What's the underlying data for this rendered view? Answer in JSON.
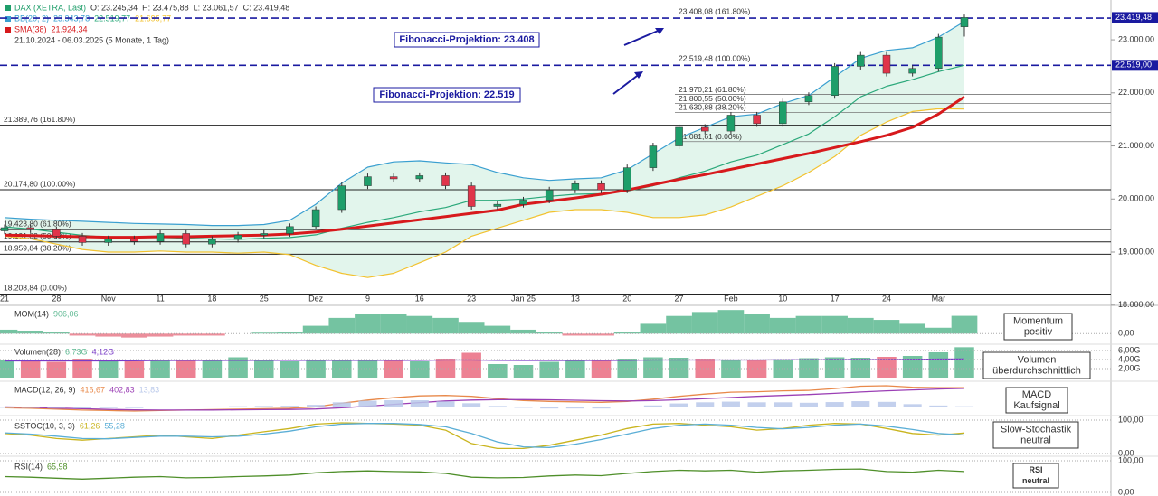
{
  "header": {
    "symbol": "DAX (XETRA, Last)",
    "open": "O: 23.245,34",
    "high": "H: 23.475,88",
    "low": "L: 23.061,57",
    "close": "C: 23.419,48",
    "bb": "BB(20, 2)",
    "bb_upper": "23.343,78",
    "bb_mid": "22.519,77",
    "bb_lower": "21.695,77",
    "sma": "SMA(38)",
    "sma_value": "21.924,34",
    "range": "21.10.2024 - 06.03.2025 (5 Monate, 1 Tag)"
  },
  "chart_data": [
    {
      "type": "candlestick",
      "categories": [
        "21",
        null,
        "28",
        null,
        "Nov",
        null,
        "11",
        null,
        "18",
        null,
        "25",
        null,
        "Dez",
        null,
        "9",
        null,
        "16",
        null,
        "23",
        null,
        "Jan 25",
        null,
        "13",
        null,
        "20",
        null,
        "27",
        null,
        "Feb",
        null,
        "10",
        null,
        "17",
        null,
        "24",
        null,
        "Mar",
        null
      ],
      "open": [
        19400,
        19460,
        19420,
        19300,
        19180,
        19250,
        19200,
        19350,
        19150,
        19240,
        19320,
        19350,
        19480,
        19800,
        20250,
        20420,
        20380,
        20440,
        20250,
        19860,
        19900,
        19980,
        20170,
        20290,
        20170,
        20590,
        21000,
        21350,
        21280,
        21580,
        21420,
        21830,
        21950,
        22500,
        22710,
        22370,
        22460,
        23245.34
      ],
      "high": [
        19520,
        19520,
        19480,
        19360,
        19310,
        19310,
        19410,
        19410,
        19300,
        19380,
        19410,
        19540,
        19860,
        20310,
        20480,
        20480,
        20500,
        20500,
        20310,
        19960,
        20040,
        20230,
        20350,
        20350,
        20650,
        21060,
        21410,
        21410,
        21640,
        21640,
        21890,
        22010,
        22560,
        22770,
        22770,
        22520,
        23110,
        23475.88
      ],
      "low": [
        19340,
        19360,
        19240,
        19120,
        19120,
        19140,
        19140,
        19090,
        19090,
        19180,
        19260,
        19290,
        19420,
        19740,
        20190,
        20320,
        20320,
        20190,
        19800,
        19800,
        19840,
        19920,
        20110,
        20110,
        20110,
        20530,
        20940,
        21220,
        21220,
        21360,
        21360,
        21770,
        21890,
        22440,
        22310,
        22310,
        22400,
        23061.57
      ],
      "close": [
        19460,
        19420,
        19300,
        19180,
        19250,
        19200,
        19350,
        19150,
        19240,
        19320,
        19350,
        19480,
        19800,
        20250,
        20420,
        20380,
        20440,
        20250,
        19860,
        19900,
        19980,
        20170,
        20290,
        20170,
        20590,
        21000,
        21350,
        21280,
        21580,
        21420,
        21830,
        21950,
        22500,
        22710,
        22370,
        22460,
        23050,
        23419.48
      ],
      "up_color": "#1e9e6a",
      "down_color": "#e0344a",
      "series": [
        {
          "color": "#3a9fd0",
          "values": [
            19650,
            19620,
            19600,
            19580,
            19560,
            19540,
            19530,
            19520,
            19500,
            19500,
            19520,
            19600,
            19900,
            20300,
            20600,
            20700,
            20720,
            20680,
            20650,
            20500,
            20400,
            20350,
            20380,
            20400,
            20550,
            20850,
            21150,
            21350,
            21550,
            21600,
            21800,
            21950,
            22300,
            22650,
            22800,
            22850,
            23050,
            23343.78
          ]
        },
        {
          "color": "#2aa87a",
          "values": [
            19475,
            19435,
            19375,
            19315,
            19280,
            19270,
            19275,
            19260,
            19250,
            19240,
            19260,
            19275,
            19325,
            19450,
            19560,
            19650,
            19760,
            19840,
            19975,
            19975,
            20000,
            20050,
            20090,
            20100,
            20150,
            20250,
            20400,
            20525,
            20700,
            20825,
            21025,
            21225,
            21550,
            21925,
            22125,
            22250,
            22400,
            22519.77
          ]
        },
        {
          "color": "#f2c230",
          "values": [
            19300,
            19250,
            19150,
            19050,
            19000,
            19000,
            19020,
            19000,
            19000,
            18980,
            19000,
            18950,
            18750,
            18600,
            18520,
            18600,
            18800,
            19000,
            19300,
            19450,
            19600,
            19750,
            19800,
            19800,
            19750,
            19650,
            19650,
            19700,
            19850,
            20050,
            20250,
            20500,
            20800,
            21200,
            21450,
            21650,
            21700,
            21695.77
          ]
        },
        {
          "color": "#d7191c",
          "values": [
            19320,
            19310,
            19300,
            19290,
            19280,
            19280,
            19290,
            19290,
            19300,
            19310,
            19320,
            19340,
            19380,
            19430,
            19490,
            19550,
            19610,
            19670,
            19730,
            19790,
            19900,
            19960,
            20020,
            20090,
            20170,
            20270,
            20370,
            20460,
            20560,
            20660,
            20760,
            20860,
            20970,
            21080,
            21200,
            21350,
            21600,
            21924.34
          ]
        }
      ],
      "band_color": "#cfeee0",
      "ylim": [
        18200,
        23580
      ],
      "yticks": [
        {
          "value": 23000,
          "label": "23.000,00"
        },
        {
          "value": 22000,
          "label": "22.000,00"
        },
        {
          "value": 21000,
          "label": "21.000,00"
        },
        {
          "value": 20000,
          "label": "20.000,00"
        },
        {
          "value": 19000,
          "label": "19.000,00"
        },
        {
          "value": 18000,
          "label": "18.000,00"
        }
      ],
      "fib_left": [
        {
          "value": 21389.76,
          "label": "21.389,76 (161.80%)"
        },
        {
          "value": 20174.8,
          "label": "20.174,80 (100.00%)"
        },
        {
          "value": 19423.8,
          "label": "19.423,80 (61.80%)"
        },
        {
          "value": 19191.82,
          "label": "19.191,82 (50.00%)"
        },
        {
          "value": 18959.84,
          "label": "18.959,84 (38.20%)"
        },
        {
          "value": 18208.84,
          "label": "18.208,84 (0.00%)"
        }
      ],
      "fib_right": [
        {
          "value": 21970.21,
          "label": "21.970,21 (61.80%)"
        },
        {
          "value": 21800.55,
          "label": "21.800,55 (50.00%)"
        },
        {
          "value": 21630.88,
          "label": "21.630,88 (38.20%)"
        },
        {
          "value": 21081.61,
          "label": "21.081,61 (0.00%)"
        }
      ],
      "fib_projection": [
        {
          "value": 23408.08,
          "label": "23.408,08 (161.80%)"
        },
        {
          "value": 22519.48,
          "label": "22.519,48 (100.00%)"
        }
      ],
      "annotations": [
        "Fibonacci-Projektion: 23.408",
        "Fibonacci-Projektion: 22.519"
      ],
      "price_tags": [
        {
          "value": 23419.48,
          "label": "23.419,48"
        },
        {
          "value": 22519,
          "label": "22.519,00"
        }
      ]
    },
    {
      "type": "area",
      "title": "MOM(14)",
      "readouts": [
        "906,06"
      ],
      "ylim": [
        -400,
        1300
      ],
      "yticks": [
        {
          "value": 0,
          "label": "0,00"
        }
      ],
      "series": [
        {
          "color": "#5cb891",
          "negative_color": "#e77a8a",
          "values": [
            200,
            150,
            100,
            -100,
            -150,
            -200,
            -150,
            -100,
            -100,
            0,
            50,
            100,
            400,
            800,
            1000,
            1000,
            900,
            800,
            600,
            400,
            200,
            100,
            -100,
            -100,
            100,
            500,
            900,
            1100,
            1200,
            1000,
            800,
            900,
            900,
            800,
            700,
            500,
            300,
            906.06
          ]
        }
      ],
      "note": [
        "Momentum",
        "positiv"
      ]
    },
    {
      "type": "bar",
      "title": "Volumen(28)",
      "readouts": [
        "6,73G",
        "4,12G"
      ],
      "ylim": [
        0,
        7
      ],
      "yticks": [
        {
          "value": 6,
          "label": "6,00G"
        },
        {
          "value": 4,
          "label": "4,00G"
        },
        {
          "value": 2,
          "label": "2,00G"
        }
      ],
      "series": [
        {
          "color": "#5cb891",
          "negative_color": "#ea6b80",
          "values": [
            3.8,
            4.0,
            3.5,
            4.2,
            3.9,
            3.6,
            4.0,
            3.8,
            3.7,
            4.5,
            3.9,
            3.6,
            4.0,
            3.9,
            3.8,
            3.7,
            3.6,
            4.2,
            5.5,
            3.0,
            2.8,
            3.5,
            3.8,
            3.9,
            4.2,
            4.5,
            4.4,
            4.2,
            3.9,
            4.0,
            4.1,
            4.3,
            4.5,
            4.4,
            4.6,
            4.8,
            5.6,
            6.73
          ]
        },
        {
          "color": "#7a3cc8",
          "values": [
            3.7,
            3.7,
            3.7,
            3.7,
            3.7,
            3.75,
            3.8,
            3.8,
            3.8,
            3.85,
            3.85,
            3.85,
            3.85,
            3.85,
            3.85,
            3.85,
            3.85,
            3.9,
            3.9,
            3.85,
            3.8,
            3.8,
            3.8,
            3.8,
            3.85,
            3.9,
            3.9,
            3.9,
            3.9,
            3.9,
            3.95,
            3.95,
            4.0,
            4.0,
            4.0,
            4.05,
            4.1,
            4.12
          ]
        }
      ],
      "note": [
        "Volumen",
        "überdurchschnittlich"
      ]
    },
    {
      "type": "line",
      "title": "MACD(12, 26, 9)",
      "readouts": [
        "416,67",
        "402,83",
        "13,83"
      ],
      "ylim": [
        -150,
        500
      ],
      "series": [
        {
          "color": "#e8894a",
          "values": [
            -20,
            -30,
            -50,
            -70,
            -80,
            -90,
            -80,
            -70,
            -60,
            -50,
            -40,
            -30,
            0,
            80,
            150,
            200,
            240,
            250,
            230,
            180,
            140,
            120,
            110,
            100,
            120,
            170,
            230,
            280,
            320,
            330,
            350,
            360,
            400,
            450,
            460,
            430,
            420,
            416.67
          ]
        },
        {
          "color": "#9b3fb5",
          "values": [
            0,
            -10,
            -25,
            -40,
            -55,
            -65,
            -70,
            -70,
            -68,
            -64,
            -60,
            -55,
            -45,
            -20,
            15,
            55,
            95,
            130,
            150,
            160,
            160,
            155,
            145,
            135,
            130,
            138,
            155,
            180,
            205,
            230,
            250,
            270,
            295,
            325,
            350,
            370,
            390,
            402.83
          ]
        },
        {
          "color": "#b9c8ea",
          "style": "histogram",
          "values": [
            -20,
            -20,
            -25,
            -30,
            -25,
            -25,
            -10,
            0,
            8,
            14,
            20,
            25,
            45,
            100,
            135,
            145,
            145,
            120,
            80,
            20,
            -20,
            -35,
            -35,
            -35,
            -10,
            32,
            75,
            100,
            115,
            100,
            100,
            90,
            105,
            125,
            110,
            60,
            30,
            13.83
          ]
        }
      ],
      "note": [
        "MACD",
        "Kaufsignal"
      ]
    },
    {
      "type": "line",
      "title": "SSTOC(10, 3, 3)",
      "readouts": [
        "61,26",
        "55,28"
      ],
      "ylim": [
        0,
        100
      ],
      "yticks": [
        {
          "value": 100,
          "label": "100,00"
        },
        {
          "value": 0,
          "label": "0,00"
        }
      ],
      "series": [
        {
          "color": "#c9b41e",
          "values": [
            60,
            55,
            45,
            40,
            45,
            50,
            55,
            50,
            45,
            55,
            65,
            75,
            88,
            92,
            90,
            88,
            85,
            70,
            30,
            15,
            15,
            25,
            40,
            55,
            75,
            88,
            90,
            85,
            80,
            70,
            75,
            85,
            90,
            88,
            75,
            60,
            55,
            61.26
          ]
        },
        {
          "color": "#5aaed6",
          "values": [
            62,
            58,
            52,
            45,
            44,
            48,
            52,
            52,
            50,
            52,
            58,
            67,
            80,
            88,
            90,
            90,
            87,
            80,
            60,
            35,
            20,
            18,
            28,
            42,
            58,
            75,
            85,
            88,
            85,
            78,
            74,
            78,
            85,
            88,
            82,
            72,
            60,
            55.28
          ]
        }
      ],
      "note": [
        "Slow-Stochastik",
        "neutral"
      ]
    },
    {
      "type": "line",
      "title": "RSI(14)",
      "readouts": [
        "65,98"
      ],
      "ylim": [
        0,
        100
      ],
      "yticks": [
        {
          "value": 100,
          "label": "100,00"
        },
        {
          "value": 0,
          "label": "0,00"
        }
      ],
      "series": [
        {
          "color": "#4f8f2a",
          "values": [
            50,
            48,
            45,
            42,
            45,
            48,
            50,
            46,
            47,
            50,
            52,
            55,
            62,
            66,
            68,
            66,
            65,
            60,
            48,
            46,
            47,
            52,
            55,
            53,
            60,
            66,
            70,
            68,
            70,
            64,
            68,
            70,
            73,
            74,
            66,
            64,
            70,
            65.98
          ]
        }
      ],
      "note": [
        "RSI",
        "neutral"
      ]
    }
  ]
}
